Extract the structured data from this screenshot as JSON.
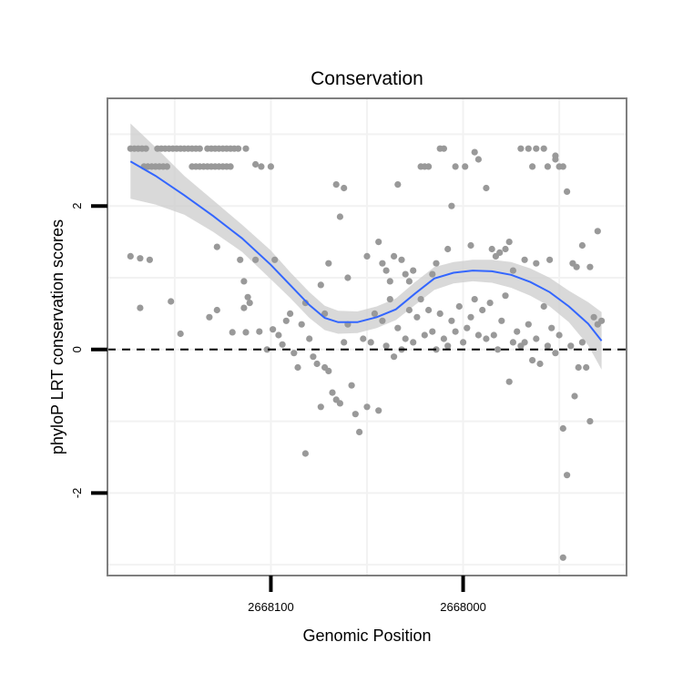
{
  "chart_data": {
    "type": "scatter",
    "title": "Conservation",
    "xlabel": "Genomic Position",
    "ylabel": "phyloP LRT conservation scores",
    "x_reversed": true,
    "xlim": [
      2668185,
      2667915
    ],
    "ylim": [
      -3.15,
      3.5
    ],
    "xticks": [
      {
        "value": 2668100,
        "label": "2668100"
      },
      {
        "value": 2668000,
        "label": "2668000"
      }
    ],
    "yticks": [
      {
        "value": -2,
        "label": "-2"
      },
      {
        "value": 0,
        "label": "0"
      },
      {
        "value": 2,
        "label": "2"
      }
    ],
    "grid": true,
    "reference_line": {
      "y": 0,
      "style": "dashed"
    },
    "colors": {
      "points": "#999999",
      "smooth": "#3366FF",
      "band": "#cccccc",
      "grid": "#f2f2f2",
      "frame": "#7f7f7f"
    },
    "points": [
      [
        2668173,
        2.8
      ],
      [
        2668171,
        2.8
      ],
      [
        2668169,
        2.8
      ],
      [
        2668167,
        2.8
      ],
      [
        2668165,
        2.8
      ],
      [
        2668159,
        2.8
      ],
      [
        2668157,
        2.8
      ],
      [
        2668155,
        2.8
      ],
      [
        2668153,
        2.8
      ],
      [
        2668151,
        2.8
      ],
      [
        2668149,
        2.8
      ],
      [
        2668147,
        2.8
      ],
      [
        2668145,
        2.8
      ],
      [
        2668143,
        2.8
      ],
      [
        2668141,
        2.8
      ],
      [
        2668139,
        2.8
      ],
      [
        2668137,
        2.8
      ],
      [
        2668133,
        2.8
      ],
      [
        2668131,
        2.8
      ],
      [
        2668129,
        2.8
      ],
      [
        2668127,
        2.8
      ],
      [
        2668125,
        2.8
      ],
      [
        2668123,
        2.8
      ],
      [
        2668121,
        2.8
      ],
      [
        2668119,
        2.8
      ],
      [
        2668117,
        2.8
      ],
      [
        2668113,
        2.8
      ],
      [
        2668166,
        2.55
      ],
      [
        2668164,
        2.55
      ],
      [
        2668162,
        2.55
      ],
      [
        2668160,
        2.55
      ],
      [
        2668158,
        2.55
      ],
      [
        2668156,
        2.55
      ],
      [
        2668154,
        2.55
      ],
      [
        2668141,
        2.55
      ],
      [
        2668139,
        2.55
      ],
      [
        2668137,
        2.55
      ],
      [
        2668135,
        2.55
      ],
      [
        2668133,
        2.55
      ],
      [
        2668131,
        2.55
      ],
      [
        2668129,
        2.55
      ],
      [
        2668127,
        2.55
      ],
      [
        2668125,
        2.55
      ],
      [
        2668123,
        2.55
      ],
      [
        2668121,
        2.55
      ],
      [
        2668108,
        2.58
      ],
      [
        2668105,
        2.55
      ],
      [
        2668100,
        2.55
      ],
      [
        2668173,
        1.3
      ],
      [
        2668168,
        1.27
      ],
      [
        2668163,
        1.25
      ],
      [
        2668128,
        1.43
      ],
      [
        2668116,
        1.25
      ],
      [
        2668108,
        1.25
      ],
      [
        2668098,
        1.25
      ],
      [
        2668111,
        0.65
      ],
      [
        2668114,
        0.58
      ],
      [
        2668112,
        0.73
      ],
      [
        2668114,
        0.95
      ],
      [
        2668168,
        0.58
      ],
      [
        2668152,
        0.67
      ],
      [
        2668147,
        0.22
      ],
      [
        2668132,
        0.45
      ],
      [
        2668128,
        0.55
      ],
      [
        2668120,
        0.24
      ],
      [
        2668113,
        0.24
      ],
      [
        2668106,
        0.25
      ],
      [
        2668102,
        0.0
      ],
      [
        2668099,
        0.28
      ],
      [
        2668096,
        0.2
      ],
      [
        2668094,
        0.07
      ],
      [
        2668092,
        0.4
      ],
      [
        2668090,
        0.5
      ],
      [
        2668088,
        -0.05
      ],
      [
        2668086,
        -0.25
      ],
      [
        2668084,
        0.35
      ],
      [
        2668082,
        0.65
      ],
      [
        2668080,
        0.15
      ],
      [
        2668078,
        -0.1
      ],
      [
        2668076,
        -0.2
      ],
      [
        2668074,
        -0.8
      ],
      [
        2668072,
        -0.25
      ],
      [
        2668070,
        -0.3
      ],
      [
        2668068,
        -0.6
      ],
      [
        2668066,
        -0.7
      ],
      [
        2668064,
        -0.75
      ],
      [
        2668062,
        0.1
      ],
      [
        2668060,
        0.35
      ],
      [
        2668058,
        -0.5
      ],
      [
        2668056,
        -0.9
      ],
      [
        2668054,
        -1.15
      ],
      [
        2668052,
        0.15
      ],
      [
        2668050,
        -0.8
      ],
      [
        2668048,
        0.1
      ],
      [
        2668046,
        0.5
      ],
      [
        2668044,
        -0.85
      ],
      [
        2668042,
        0.4
      ],
      [
        2668040,
        0.05
      ],
      [
        2668038,
        0.7
      ],
      [
        2668036,
        -0.1
      ],
      [
        2668034,
        0.3
      ],
      [
        2668032,
        0.0
      ],
      [
        2668030,
        0.15
      ],
      [
        2668028,
        0.55
      ],
      [
        2668026,
        0.1
      ],
      [
        2668024,
        0.45
      ],
      [
        2668022,
        0.7
      ],
      [
        2668020,
        0.2
      ],
      [
        2668018,
        0.55
      ],
      [
        2668016,
        0.25
      ],
      [
        2668014,
        0.0
      ],
      [
        2668012,
        0.5
      ],
      [
        2668010,
        0.15
      ],
      [
        2668008,
        0.05
      ],
      [
        2668006,
        0.4
      ],
      [
        2668004,
        0.25
      ],
      [
        2668002,
        0.6
      ],
      [
        2668000,
        0.1
      ],
      [
        2667998,
        0.3
      ],
      [
        2667996,
        0.45
      ],
      [
        2667994,
        0.7
      ],
      [
        2667992,
        0.2
      ],
      [
        2667990,
        0.55
      ],
      [
        2667988,
        0.15
      ],
      [
        2667986,
        0.65
      ],
      [
        2667984,
        0.2
      ],
      [
        2667982,
        0.0
      ],
      [
        2667980,
        0.4
      ],
      [
        2667978,
        0.75
      ],
      [
        2667976,
        -0.45
      ],
      [
        2667974,
        0.1
      ],
      [
        2667972,
        0.25
      ],
      [
        2667970,
        0.05
      ],
      [
        2667968,
        0.1
      ],
      [
        2667966,
        0.35
      ],
      [
        2667964,
        -0.15
      ],
      [
        2667962,
        0.15
      ],
      [
        2667960,
        -0.2
      ],
      [
        2667958,
        0.6
      ],
      [
        2667956,
        0.05
      ],
      [
        2667954,
        0.3
      ],
      [
        2667952,
        -0.05
      ],
      [
        2667950,
        0.2
      ],
      [
        2667948,
        -1.1
      ],
      [
        2667946,
        -1.75
      ],
      [
        2667944,
        0.05
      ],
      [
        2667942,
        -0.65
      ],
      [
        2667940,
        -0.25
      ],
      [
        2667938,
        0.1
      ],
      [
        2667936,
        -0.25
      ],
      [
        2667934,
        -1.0
      ],
      [
        2667932,
        0.45
      ],
      [
        2667930,
        0.35
      ],
      [
        2667928,
        0.4
      ],
      [
        2668082,
        -1.45
      ],
      [
        2668074,
        0.9
      ],
      [
        2668070,
        1.2
      ],
      [
        2668072,
        0.5
      ],
      [
        2668066,
        2.3
      ],
      [
        2668062,
        2.25
      ],
      [
        2668060,
        1.0
      ],
      [
        2668064,
        1.85
      ],
      [
        2668050,
        1.3
      ],
      [
        2668044,
        1.5
      ],
      [
        2668042,
        1.2
      ],
      [
        2668040,
        1.1
      ],
      [
        2668038,
        0.95
      ],
      [
        2668036,
        1.3
      ],
      [
        2668034,
        2.3
      ],
      [
        2668032,
        1.25
      ],
      [
        2668030,
        1.05
      ],
      [
        2668028,
        0.95
      ],
      [
        2668026,
        1.1
      ],
      [
        2668022,
        2.55
      ],
      [
        2668020,
        2.55
      ],
      [
        2668018,
        2.55
      ],
      [
        2668016,
        1.05
      ],
      [
        2668014,
        1.2
      ],
      [
        2668012,
        2.8
      ],
      [
        2668010,
        2.8
      ],
      [
        2668008,
        1.4
      ],
      [
        2668006,
        2.0
      ],
      [
        2668004,
        2.55
      ],
      [
        2667999,
        2.55
      ],
      [
        2667996,
        1.45
      ],
      [
        2667994,
        2.75
      ],
      [
        2667992,
        2.65
      ],
      [
        2667988,
        2.25
      ],
      [
        2667985,
        1.4
      ],
      [
        2667983,
        1.3
      ],
      [
        2667981,
        1.35
      ],
      [
        2667978,
        1.4
      ],
      [
        2667976,
        1.5
      ],
      [
        2667970,
        2.8
      ],
      [
        2667966,
        2.8
      ],
      [
        2667964,
        2.55
      ],
      [
        2667962,
        2.8
      ],
      [
        2667958,
        2.8
      ],
      [
        2667956,
        2.55
      ],
      [
        2667952,
        2.65
      ],
      [
        2667950,
        2.55
      ],
      [
        2667948,
        2.55
      ],
      [
        2667946,
        2.2
      ],
      [
        2667943,
        1.2
      ],
      [
        2667941,
        1.15
      ],
      [
        2667938,
        1.45
      ],
      [
        2667934,
        1.15
      ],
      [
        2667930,
        1.65
      ],
      [
        2667974,
        1.1
      ],
      [
        2667968,
        1.25
      ],
      [
        2667962,
        1.2
      ],
      [
        2667955,
        1.25
      ],
      [
        2667952,
        2.7
      ],
      [
        2667948,
        -2.9
      ]
    ],
    "smooth_fit": [
      [
        2668173,
        2.62
      ],
      [
        2668160,
        2.42
      ],
      [
        2668145,
        2.15
      ],
      [
        2668130,
        1.86
      ],
      [
        2668115,
        1.55
      ],
      [
        2668100,
        1.18
      ],
      [
        2668090,
        0.9
      ],
      [
        2668080,
        0.62
      ],
      [
        2668072,
        0.44
      ],
      [
        2668065,
        0.38
      ],
      [
        2668055,
        0.38
      ],
      [
        2668045,
        0.45
      ],
      [
        2668035,
        0.56
      ],
      [
        2668025,
        0.78
      ],
      [
        2668015,
        0.99
      ],
      [
        2668005,
        1.07
      ],
      [
        2667995,
        1.1
      ],
      [
        2667985,
        1.09
      ],
      [
        2667975,
        1.04
      ],
      [
        2667965,
        0.94
      ],
      [
        2667955,
        0.8
      ],
      [
        2667945,
        0.6
      ],
      [
        2667935,
        0.36
      ],
      [
        2667928,
        0.12
      ]
    ],
    "smooth_band": [
      [
        2668173,
        2.1,
        3.15
      ],
      [
        2668160,
        2.02,
        2.82
      ],
      [
        2668145,
        1.88,
        2.42
      ],
      [
        2668130,
        1.64,
        2.08
      ],
      [
        2668115,
        1.36,
        1.74
      ],
      [
        2668100,
        0.98,
        1.38
      ],
      [
        2668090,
        0.72,
        1.08
      ],
      [
        2668080,
        0.44,
        0.8
      ],
      [
        2668072,
        0.27,
        0.61
      ],
      [
        2668065,
        0.22,
        0.54
      ],
      [
        2668055,
        0.23,
        0.53
      ],
      [
        2668045,
        0.3,
        0.6
      ],
      [
        2668035,
        0.41,
        0.71
      ],
      [
        2668025,
        0.62,
        0.94
      ],
      [
        2668015,
        0.83,
        1.15
      ],
      [
        2668005,
        0.92,
        1.22
      ],
      [
        2667995,
        0.95,
        1.25
      ],
      [
        2667985,
        0.93,
        1.25
      ],
      [
        2667975,
        0.86,
        1.22
      ],
      [
        2667965,
        0.75,
        1.13
      ],
      [
        2667955,
        0.6,
        1.0
      ],
      [
        2667945,
        0.38,
        0.82
      ],
      [
        2667935,
        0.06,
        0.66
      ],
      [
        2667928,
        -0.28,
        0.52
      ]
    ]
  }
}
